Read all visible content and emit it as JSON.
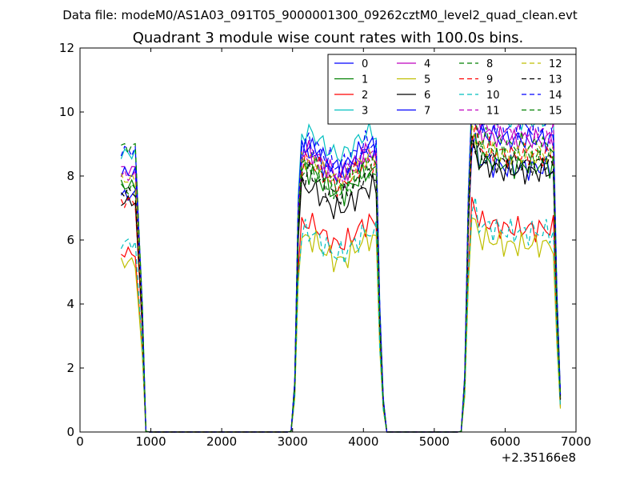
{
  "suptitle": "Data file: modeM0/AS1A03_091T05_9000001300_09262cztM0_level2_quad_clean.evt",
  "chart_data": {
    "type": "line",
    "title": "Quadrant 3 module wise count rates with 100.0s bins.",
    "x_offset_label": "+2.35166e8",
    "xlim": [
      0,
      7000
    ],
    "ylim": [
      0,
      12
    ],
    "xticks": [
      0,
      1000,
      2000,
      3000,
      4000,
      5000,
      6000,
      7000
    ],
    "yticks": [
      0,
      2,
      4,
      6,
      8,
      10,
      12
    ],
    "grid": false,
    "legend": {
      "placement": "top-right",
      "columns": 4
    },
    "x_segments": [
      {
        "start": 580,
        "end": 980,
        "step": 50
      },
      {
        "start": 2980,
        "end": 4280,
        "step": 50
      },
      {
        "start": 5380,
        "end": 6780,
        "step": 50
      }
    ],
    "series": [
      {
        "name": "0",
        "color": "#0000ff",
        "dash": "solid",
        "levels": [
          7.4,
          8.4,
          8.5
        ]
      },
      {
        "name": "1",
        "color": "#008000",
        "dash": "solid",
        "levels": [
          7.7,
          7.8,
          8.6
        ]
      },
      {
        "name": "2",
        "color": "#ff0000",
        "dash": "solid",
        "levels": [
          5.6,
          6.2,
          6.6
        ]
      },
      {
        "name": "3",
        "color": "#00bfbf",
        "dash": "solid",
        "levels": [
          8.7,
          9.0,
          10.0
        ]
      },
      {
        "name": "4",
        "color": "#bf00bf",
        "dash": "solid",
        "levels": [
          8.2,
          8.4,
          9.4
        ]
      },
      {
        "name": "5",
        "color": "#bfbf00",
        "dash": "solid",
        "levels": [
          5.3,
          5.7,
          6.1
        ]
      },
      {
        "name": "6",
        "color": "#000000",
        "dash": "solid",
        "levels": [
          7.2,
          7.3,
          8.4
        ]
      },
      {
        "name": "7",
        "color": "#0000ff",
        "dash": "solid",
        "levels": [
          8.1,
          8.6,
          9.4
        ]
      },
      {
        "name": "8",
        "color": "#008000",
        "dash": "dashed",
        "levels": [
          7.6,
          7.9,
          8.8
        ]
      },
      {
        "name": "9",
        "color": "#ff0000",
        "dash": "dashed",
        "levels": [
          7.2,
          8.1,
          8.9
        ]
      },
      {
        "name": "10",
        "color": "#00bfbf",
        "dash": "dashed",
        "levels": [
          5.9,
          5.9,
          6.5
        ]
      },
      {
        "name": "11",
        "color": "#bf00bf",
        "dash": "dashed",
        "levels": [
          8.0,
          8.3,
          9.6
        ]
      },
      {
        "name": "12",
        "color": "#bfbf00",
        "dash": "dashed",
        "levels": [
          7.9,
          8.2,
          8.9
        ]
      },
      {
        "name": "13",
        "color": "#000000",
        "dash": "dashed",
        "levels": [
          7.5,
          7.7,
          8.6
        ]
      },
      {
        "name": "14",
        "color": "#0000ff",
        "dash": "dashed",
        "levels": [
          8.8,
          8.7,
          9.8
        ]
      },
      {
        "name": "15",
        "color": "#008000",
        "dash": "dashed",
        "levels": [
          8.9,
          8.0,
          9.2
        ]
      }
    ]
  }
}
